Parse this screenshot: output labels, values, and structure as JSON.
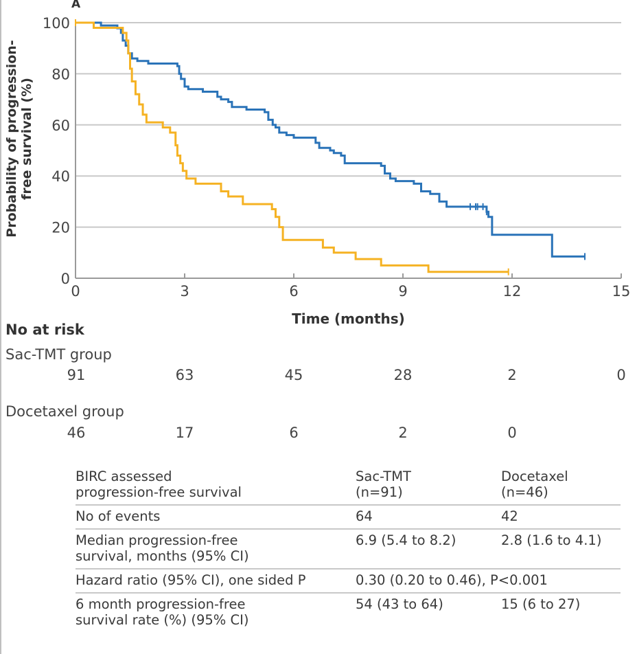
{
  "chart_data": {
    "type": "line",
    "subtype": "kaplan-meier",
    "panel_label": "A",
    "title": "",
    "xlabel": "Time (months)",
    "ylabel_lines": [
      "Probability of progression-",
      "free survival (%)"
    ],
    "xlim": [
      0,
      15
    ],
    "ylim": [
      0,
      100
    ],
    "x_ticks": [
      0,
      3,
      6,
      9,
      12,
      15
    ],
    "y_ticks": [
      0,
      20,
      40,
      60,
      80,
      100
    ],
    "grid": "horizontal",
    "series": [
      {
        "name": "Sac-TMT",
        "color": "#2a73b8",
        "steps": [
          [
            0,
            100
          ],
          [
            0.7,
            98.9
          ],
          [
            1.15,
            97.8
          ],
          [
            1.25,
            96
          ],
          [
            1.3,
            93
          ],
          [
            1.38,
            91
          ],
          [
            1.45,
            88
          ],
          [
            1.55,
            86
          ],
          [
            1.7,
            85
          ],
          [
            2.0,
            84
          ],
          [
            2.8,
            83
          ],
          [
            2.85,
            80
          ],
          [
            2.9,
            78
          ],
          [
            3.0,
            75
          ],
          [
            3.1,
            74
          ],
          [
            3.5,
            73
          ],
          [
            3.9,
            71
          ],
          [
            4.0,
            70
          ],
          [
            4.2,
            69
          ],
          [
            4.3,
            67
          ],
          [
            4.7,
            66
          ],
          [
            5.2,
            65
          ],
          [
            5.3,
            62
          ],
          [
            5.42,
            60
          ],
          [
            5.5,
            59
          ],
          [
            5.6,
            57
          ],
          [
            5.8,
            56
          ],
          [
            6.0,
            55
          ],
          [
            6.6,
            53
          ],
          [
            6.7,
            51
          ],
          [
            7.0,
            50
          ],
          [
            7.1,
            49
          ],
          [
            7.3,
            48
          ],
          [
            7.4,
            45
          ],
          [
            8.4,
            44
          ],
          [
            8.5,
            41
          ],
          [
            8.65,
            39
          ],
          [
            8.8,
            38
          ],
          [
            9.3,
            37
          ],
          [
            9.5,
            34
          ],
          [
            9.75,
            33
          ],
          [
            10.0,
            30
          ],
          [
            10.2,
            28
          ],
          [
            11.3,
            26
          ],
          [
            11.35,
            24
          ],
          [
            11.45,
            17
          ],
          [
            13.1,
            8.5
          ]
        ],
        "end": 14.0,
        "censored": [
          [
            10.85,
            28
          ],
          [
            11.0,
            28
          ],
          [
            11.05,
            28
          ],
          [
            11.2,
            28
          ],
          [
            11.3,
            26
          ],
          [
            14.0,
            8.5
          ]
        ]
      },
      {
        "name": "Docetaxel",
        "color": "#f5b223",
        "steps": [
          [
            0,
            100
          ],
          [
            0.5,
            98
          ],
          [
            1.3,
            96
          ],
          [
            1.4,
            93
          ],
          [
            1.45,
            88
          ],
          [
            1.5,
            82
          ],
          [
            1.55,
            77
          ],
          [
            1.65,
            72
          ],
          [
            1.75,
            68
          ],
          [
            1.85,
            64
          ],
          [
            1.95,
            61
          ],
          [
            2.4,
            59
          ],
          [
            2.6,
            57
          ],
          [
            2.75,
            52
          ],
          [
            2.8,
            48
          ],
          [
            2.88,
            45
          ],
          [
            2.95,
            42
          ],
          [
            3.05,
            39
          ],
          [
            3.3,
            37
          ],
          [
            4.0,
            34
          ],
          [
            4.2,
            32
          ],
          [
            4.6,
            29
          ],
          [
            5.4,
            27
          ],
          [
            5.5,
            24
          ],
          [
            5.6,
            20
          ],
          [
            5.7,
            15
          ],
          [
            6.8,
            12
          ],
          [
            7.1,
            10
          ],
          [
            7.7,
            7.5
          ],
          [
            8.4,
            5
          ],
          [
            9.7,
            2.5
          ]
        ],
        "end": 11.9,
        "censored": [
          [
            0,
            100
          ],
          [
            11.9,
            2.5
          ]
        ]
      }
    ],
    "risk_table": {
      "title": "No at risk",
      "times": [
        0,
        3,
        6,
        9,
        12,
        15
      ],
      "groups": [
        {
          "label": "Sac-TMT group",
          "values": [
            "91",
            "63",
            "45",
            "28",
            "2",
            "0"
          ]
        },
        {
          "label": "Docetaxel group",
          "values": [
            "46",
            "17",
            "6",
            "2",
            "0",
            ""
          ]
        }
      ]
    }
  },
  "summary_table": {
    "header": {
      "c1_line1": "BIRC assessed",
      "c1_line2": "progression-free survival",
      "c2_line1": "Sac-TMT",
      "c2_line2": "(n=91)",
      "c3_line1": "Docetaxel",
      "c3_line2": "(n=46)"
    },
    "rows": [
      {
        "label_line1": "No of events",
        "label_line2": "",
        "sac": "64",
        "doc": "42"
      },
      {
        "label_line1": "Median progression-free",
        "label_line2": "survival, months (95% CI)",
        "sac": "6.9 (5.4 to 8.2)",
        "doc": "2.8 (1.6 to 4.1)"
      },
      {
        "label_line1": "Hazard ratio (95% CI), one sided P",
        "label_line2": "",
        "combined": "0.30 (0.20 to 0.46), P<0.001"
      },
      {
        "label_line1": "6 month progression-free",
        "label_line2": "survival rate (%) (95% CI)",
        "sac": "54 (43 to 64)",
        "doc": "15 (6 to 27)"
      }
    ]
  }
}
